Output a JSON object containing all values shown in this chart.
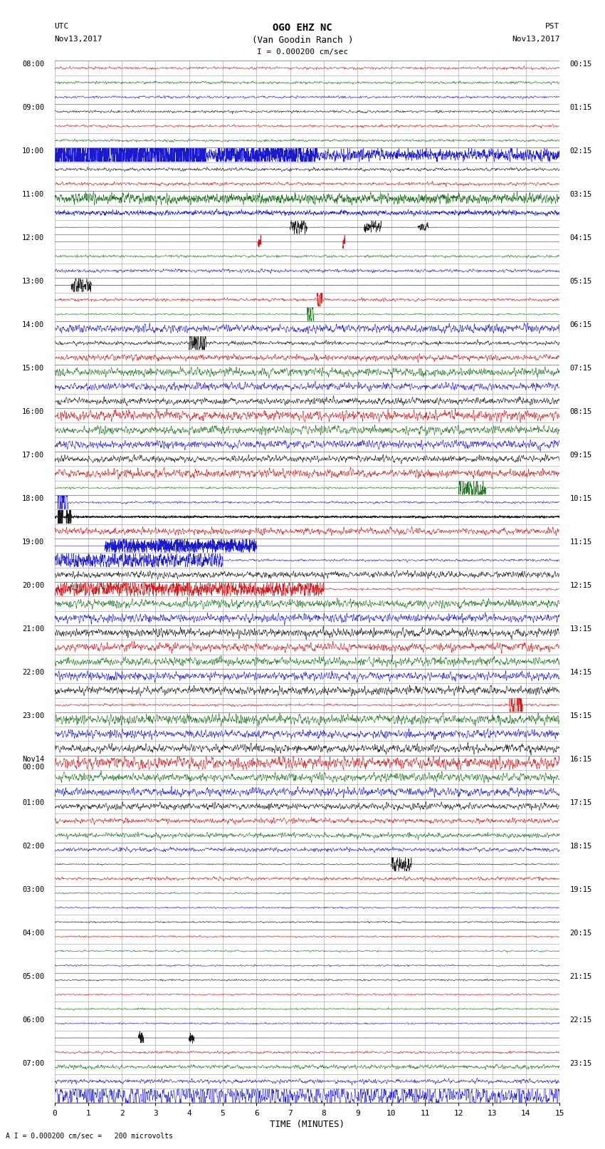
{
  "title_line1": "OGO EHZ NC",
  "title_line2": "(Van Goodin Ranch )",
  "title_line3": "I = 0.000200 cm/sec",
  "left_header_line1": "UTC",
  "left_header_line2": "Nov13,2017",
  "right_header_line1": "PST",
  "right_header_line2": "Nov13,2017",
  "footer_note": "A I = 0.000200 cm/sec =   200 microvolts",
  "xlabel": "TIME (MINUTES)",
  "xlim": [
    0,
    15
  ],
  "xticks": [
    0,
    1,
    2,
    3,
    4,
    5,
    6,
    7,
    8,
    9,
    10,
    11,
    12,
    13,
    14,
    15
  ],
  "left_labels": [
    "08:00",
    "09:00",
    "10:00",
    "11:00",
    "12:00",
    "13:00",
    "14:00",
    "15:00",
    "16:00",
    "17:00",
    "18:00",
    "19:00",
    "20:00",
    "21:00",
    "22:00",
    "23:00",
    "Nov14\n00:00",
    "01:00",
    "02:00",
    "03:00",
    "04:00",
    "05:00",
    "06:00",
    "07:00"
  ],
  "right_labels": [
    "00:15",
    "01:15",
    "02:15",
    "03:15",
    "04:15",
    "05:15",
    "06:15",
    "07:15",
    "08:15",
    "09:15",
    "10:15",
    "11:15",
    "12:15",
    "13:15",
    "14:15",
    "15:15",
    "16:15",
    "17:15",
    "18:15",
    "19:15",
    "20:15",
    "21:15",
    "22:15",
    "23:15"
  ],
  "n_hours": 24,
  "rows_per_hour": 3,
  "bg_color": "#ffffff",
  "grid_color": "#999999",
  "colors": [
    "#cc0000",
    "#006400",
    "#0000cc",
    "#000000"
  ],
  "figsize": [
    8.5,
    16.13
  ],
  "dpi": 100
}
